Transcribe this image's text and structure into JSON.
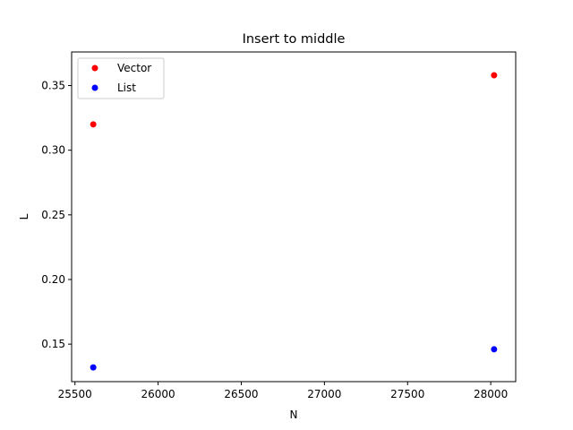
{
  "chart_data": {
    "type": "scatter",
    "title": "Insert to middle",
    "xlabel": "N",
    "ylabel": "L",
    "xlim": [
      25480,
      28150
    ],
    "ylim": [
      0.121,
      0.376
    ],
    "xticks": [
      25500,
      26000,
      26500,
      27000,
      27500,
      28000
    ],
    "xtick_labels": [
      "25500",
      "26000",
      "26500",
      "27000",
      "27500",
      "28000"
    ],
    "yticks": [
      0.15,
      0.2,
      0.25,
      0.3,
      0.35
    ],
    "ytick_labels": [
      "0.15",
      "0.20",
      "0.25",
      "0.30",
      "0.35"
    ],
    "grid": false,
    "legend_position": "upper-left",
    "series": [
      {
        "name": "Vector",
        "color": "#ff0000",
        "points": [
          {
            "x": 25610,
            "y": 0.32
          },
          {
            "x": 28020,
            "y": 0.358
          }
        ]
      },
      {
        "name": "List",
        "color": "#0000ff",
        "points": [
          {
            "x": 25610,
            "y": 0.132
          },
          {
            "x": 28020,
            "y": 0.146
          }
        ]
      }
    ]
  }
}
